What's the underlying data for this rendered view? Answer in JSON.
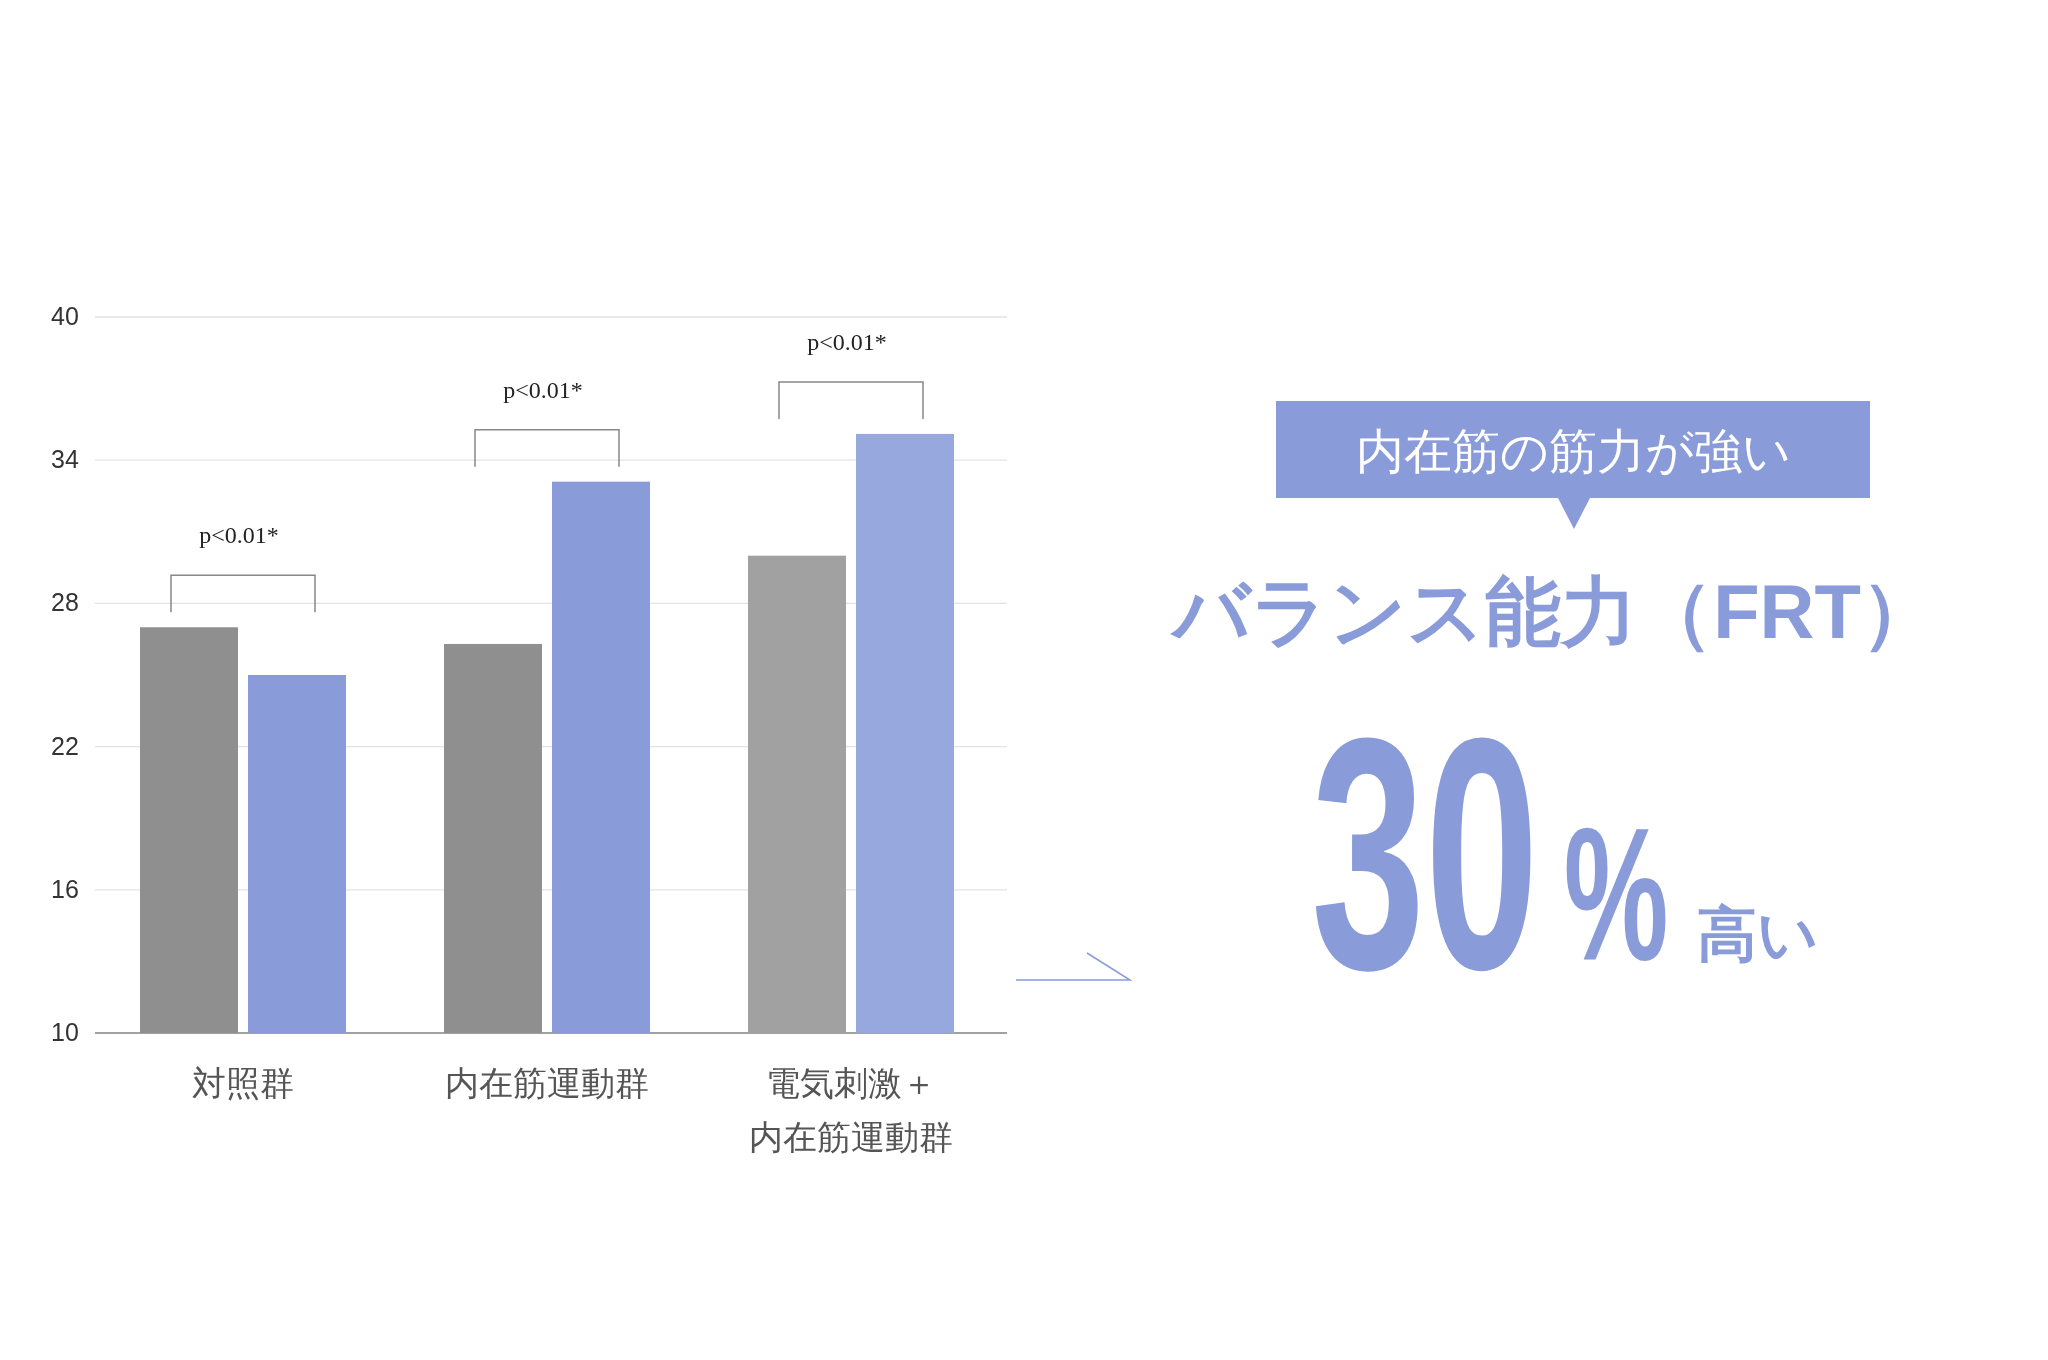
{
  "chart_data": [
    {
      "type": "bar",
      "categories": [
        "対照群",
        "内在筋運動群",
        "電気刺激＋内在筋運動群"
      ],
      "series": [
        {
          "colors": [
            "#8f8f8f",
            "#8f8f8f",
            "#a1a1a1"
          ],
          "values": [
            27.0,
            26.3,
            30.0
          ]
        },
        {
          "colors": [
            "#8a9bd9",
            "#8a9bd9",
            "#97a8df"
          ],
          "values": [
            25.0,
            33.1,
            35.1
          ]
        }
      ],
      "ylim": [
        10,
        40
      ],
      "yticks": [
        10,
        16,
        22,
        28,
        34,
        40
      ],
      "grid": "y",
      "annotations": [
        "p<0.01*",
        "p<0.01*",
        "p<0.01*"
      ]
    },
    {
      "type": "other",
      "annotations": [
        "内在筋の筋力が強い",
        "バランス能力（FRT）",
        "30",
        "%",
        "高い"
      ]
    }
  ]
}
